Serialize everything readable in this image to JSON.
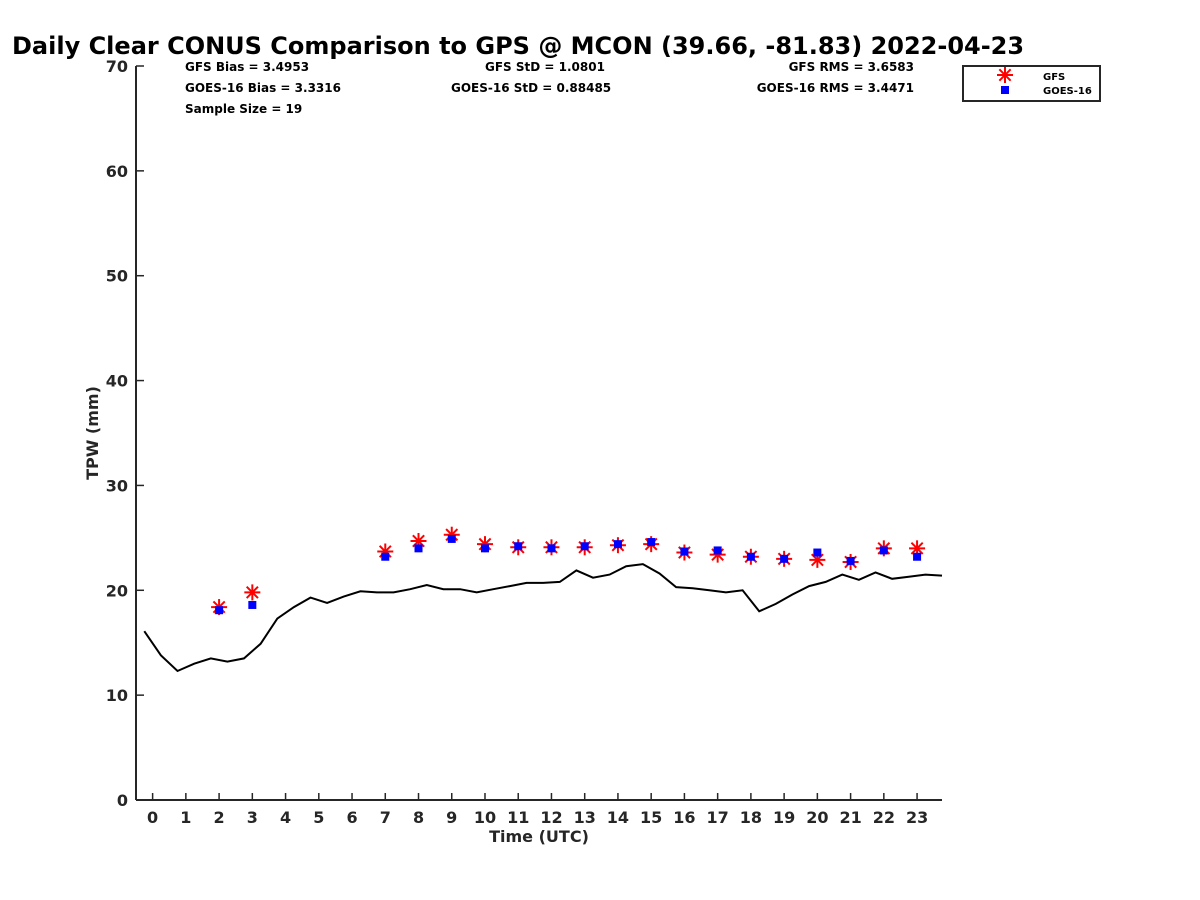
{
  "chart_data": {
    "type": "line",
    "title": "Daily Clear CONUS Comparison to GPS @ MCON (39.66, -81.83) 2022-04-23",
    "xlabel": "Time (UTC)",
    "ylabel": "TPW (mm)",
    "xlim": [
      -0.5,
      23.75
    ],
    "ylim": [
      0,
      70
    ],
    "x_ticks": [
      "0",
      "1",
      "2",
      "3",
      "4",
      "5",
      "6",
      "7",
      "8",
      "9",
      "10",
      "11",
      "12",
      "13",
      "14",
      "15",
      "16",
      "17",
      "18",
      "19",
      "20",
      "21",
      "22",
      "23"
    ],
    "y_ticks": [
      "0",
      "10",
      "20",
      "30",
      "40",
      "50",
      "60",
      "70"
    ],
    "grid": false,
    "legend_position": "top-right",
    "stats": {
      "gfs_bias": "GFS Bias = 3.4953",
      "goes_bias": "GOES-16 Bias = 3.3316",
      "sample_size": "Sample Size = 19",
      "gfs_std": "GFS StD = 1.0801",
      "goes_std": "GOES-16 StD = 0.88485",
      "gfs_rms": "GFS RMS = 3.6583",
      "goes_rms": "GOES-16 RMS = 3.4471"
    },
    "gps_line": {
      "x": [
        -0.25,
        0.25,
        0.75,
        1.25,
        1.75,
        2.25,
        2.75,
        3.25,
        3.75,
        4.25,
        4.75,
        5.25,
        5.75,
        6.25,
        6.75,
        7.25,
        7.75,
        8.25,
        8.75,
        9.25,
        9.75,
        10.25,
        10.75,
        11.25,
        11.75,
        12.25,
        12.75,
        13.25,
        13.75,
        14.25,
        14.75,
        15.25,
        15.75,
        16.25,
        16.75,
        17.25,
        17.75,
        18.25,
        18.75,
        19.25,
        19.75,
        20.25,
        20.75,
        21.25,
        21.75,
        22.25,
        22.75,
        23.25,
        23.75
      ],
      "y": [
        16.1,
        13.8,
        12.3,
        13.0,
        13.5,
        13.2,
        13.5,
        14.9,
        17.3,
        18.4,
        19.3,
        18.8,
        19.4,
        19.9,
        19.8,
        19.8,
        20.1,
        20.5,
        20.1,
        20.1,
        19.8,
        20.1,
        20.4,
        20.7,
        20.7,
        20.8,
        21.9,
        21.2,
        21.5,
        22.3,
        22.5,
        21.6,
        20.3,
        20.2,
        20.0,
        19.8,
        20.0,
        18.0,
        18.7,
        19.6,
        20.4,
        20.8,
        21.5,
        21.0,
        21.7,
        21.1,
        21.3,
        21.5,
        21.4
      ]
    },
    "series": [
      {
        "name": "GFS",
        "color": "#ff0000",
        "marker": "asterisk",
        "x": [
          2,
          3,
          7,
          8,
          9,
          10,
          11,
          12,
          13,
          14,
          15,
          16,
          17,
          18,
          19,
          20,
          21,
          22,
          23
        ],
        "y": [
          18.4,
          19.8,
          23.7,
          24.7,
          25.3,
          24.4,
          24.1,
          24.1,
          24.1,
          24.3,
          24.4,
          23.6,
          23.4,
          23.2,
          23.0,
          22.9,
          22.7,
          24.0,
          24.0
        ]
      },
      {
        "name": "GOES-16",
        "color": "#0000ff",
        "marker": "square",
        "x": [
          2,
          3,
          7,
          8,
          9,
          10,
          11,
          12,
          13,
          14,
          15,
          16,
          17,
          18,
          19,
          20,
          21,
          22,
          23
        ],
        "y": [
          18.1,
          18.6,
          23.2,
          24.0,
          24.9,
          24.0,
          24.2,
          24.0,
          24.2,
          24.4,
          24.6,
          23.7,
          23.8,
          23.2,
          23.0,
          23.6,
          22.8,
          23.8,
          23.2
        ]
      }
    ]
  }
}
